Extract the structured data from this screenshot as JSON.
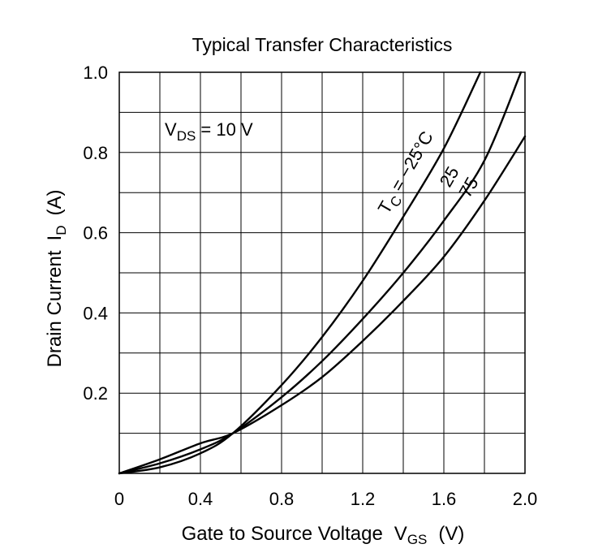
{
  "chart_data": {
    "type": "line",
    "title": "Typical Transfer Characteristics",
    "xlabel": "Gate to Source Voltage",
    "xlabel_symbol": "V",
    "xlabel_symbol_sub": "GS",
    "xlabel_unit": "(V)",
    "ylabel": "Drain Current",
    "ylabel_symbol": "I",
    "ylabel_symbol_sub": "D",
    "ylabel_unit": "(A)",
    "xlim": [
      0,
      2.0
    ],
    "ylim": [
      0,
      1.0
    ],
    "grid": true,
    "x_ticks": [
      "0",
      "0.4",
      "0.8",
      "1.2",
      "1.6",
      "2.0"
    ],
    "y_ticks": [
      "0.2",
      "0.4",
      "0.6",
      "0.8",
      "1.0"
    ],
    "condition": {
      "prefix": "V",
      "sub": "DS",
      "text": " = 10 V"
    },
    "series": [
      {
        "name": "TC = −25°C",
        "label_prefix": "T",
        "label_sub": "C",
        "label_text": " = −25°C",
        "x": [
          0,
          0.2,
          0.4,
          0.56,
          0.8,
          1.0,
          1.2,
          1.4,
          1.6,
          1.78
        ],
        "y": [
          0,
          0.015,
          0.05,
          0.1,
          0.22,
          0.34,
          0.48,
          0.64,
          0.81,
          1.0
        ]
      },
      {
        "name": "25",
        "label_text": "25",
        "x": [
          0,
          0.2,
          0.4,
          0.56,
          0.8,
          1.0,
          1.2,
          1.4,
          1.6,
          1.8,
          1.98
        ],
        "y": [
          0,
          0.025,
          0.06,
          0.1,
          0.19,
          0.28,
          0.385,
          0.5,
          0.63,
          0.78,
          1.0
        ]
      },
      {
        "name": "75",
        "label_text": "75",
        "x": [
          0,
          0.2,
          0.4,
          0.56,
          0.8,
          1.0,
          1.2,
          1.4,
          1.6,
          1.8,
          2.0
        ],
        "y": [
          0,
          0.035,
          0.075,
          0.1,
          0.17,
          0.24,
          0.33,
          0.43,
          0.54,
          0.68,
          0.84
        ]
      }
    ]
  }
}
